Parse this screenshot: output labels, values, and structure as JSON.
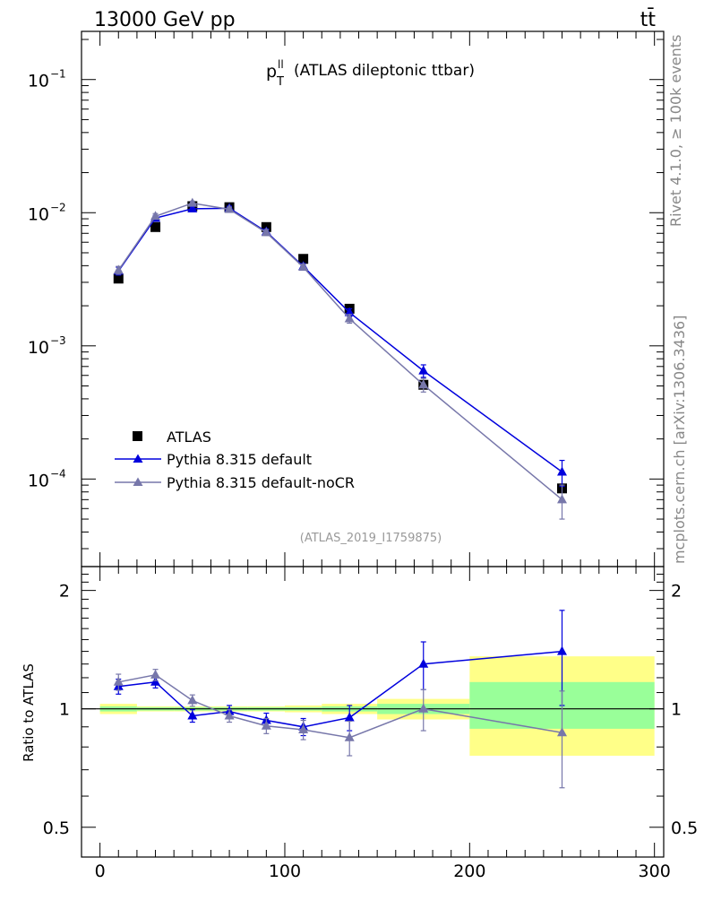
{
  "header": {
    "energy_label": "13000 GeV pp",
    "process_label": "tt̄"
  },
  "plot_title": {
    "var_main": "p",
    "var_sup": "ll",
    "var_sub": "T",
    "desc": "(ATLAS dileptonic ttbar)"
  },
  "analysis_id": "(ATLAS_2019_I1759875)",
  "side_labels": {
    "rivet": "Rivet 4.1.0, ≥ 100k events",
    "mcplots": "mcplots.cern.ch [arXiv:1306.3436]"
  },
  "legend": [
    {
      "name": "ATLAS"
    },
    {
      "name": "Pythia 8.315 default"
    },
    {
      "name": "Pythia 8.315 default-noCR"
    }
  ],
  "colors": {
    "data": "#000000",
    "default": "#0000dd",
    "nocr": "#7777aa",
    "band_inner": "#99ff99",
    "band_outer": "#ffff88"
  },
  "chart_data": [
    {
      "type": "scatter",
      "panel": "main",
      "xscale": "linear",
      "yscale": "log",
      "xlim": [
        -10,
        305
      ],
      "ylim": [
        2.2e-05,
        0.23
      ],
      "y_ticks": [
        {
          "value": 0.1,
          "label": "10",
          "exp": "−1"
        },
        {
          "value": 0.01,
          "label": "10",
          "exp": "−2"
        },
        {
          "value": 0.001,
          "label": "10",
          "exp": "−3"
        },
        {
          "value": 0.0001,
          "label": "10",
          "exp": "−4"
        }
      ],
      "bins": [
        [
          0,
          20
        ],
        [
          20,
          40
        ],
        [
          40,
          60
        ],
        [
          60,
          80
        ],
        [
          80,
          100
        ],
        [
          100,
          120
        ],
        [
          120,
          150
        ],
        [
          150,
          200
        ],
        [
          200,
          300
        ]
      ],
      "series": [
        {
          "name": "ATLAS",
          "style": "data",
          "x": [
            10,
            30,
            50,
            70,
            90,
            110,
            135,
            175,
            250
          ],
          "y": [
            0.0032,
            0.0078,
            0.0112,
            0.011,
            0.0078,
            0.0045,
            0.0019,
            0.00051,
            8.5e-05
          ]
        },
        {
          "name": "Pythia 8.315 default",
          "style": "default",
          "x": [
            10,
            30,
            50,
            70,
            90,
            110,
            135,
            175,
            250
          ],
          "y": [
            0.00365,
            0.0091,
            0.0107,
            0.0108,
            0.0072,
            0.00395,
            0.00178,
            0.00065,
            0.000113
          ],
          "err": [
            0.00025,
            0.00045,
            0.0004,
            0.0004,
            0.00035,
            0.0002,
            0.00012,
            7e-05,
            2.5e-05
          ]
        },
        {
          "name": "Pythia 8.315 default-noCR",
          "style": "nocr",
          "x": [
            10,
            30,
            50,
            70,
            90,
            110,
            135,
            175,
            250
          ],
          "y": [
            0.0037,
            0.0094,
            0.0118,
            0.0106,
            0.0071,
            0.0039,
            0.0016,
            0.00051,
            7e-05
          ],
          "err": [
            0.00025,
            0.00045,
            0.0004,
            0.0004,
            0.00035,
            0.0002,
            0.00012,
            6e-05,
            2e-05
          ]
        }
      ]
    },
    {
      "type": "line",
      "panel": "ratio",
      "ylabel": "Ratio to ATLAS",
      "xlim": [
        -10,
        305
      ],
      "ylim": [
        0.42,
        2.3
      ],
      "y_ticks": [
        {
          "value": 2,
          "label": "2"
        },
        {
          "value": 1,
          "label": "1"
        },
        {
          "value": 0.5,
          "label": "0.5"
        }
      ],
      "x_ticks": [
        {
          "value": 0,
          "label": "0"
        },
        {
          "value": 100,
          "label": "100"
        },
        {
          "value": 200,
          "label": "200"
        },
        {
          "value": 300,
          "label": "300"
        }
      ],
      "bands": [
        {
          "x0": 0,
          "x1": 20,
          "inner": [
            0.985,
            1.015
          ],
          "outer": [
            0.97,
            1.03
          ]
        },
        {
          "x0": 20,
          "x1": 40,
          "inner": [
            0.99,
            1.01
          ],
          "outer": [
            0.985,
            1.015
          ]
        },
        {
          "x0": 40,
          "x1": 60,
          "inner": [
            0.99,
            1.01
          ],
          "outer": [
            0.985,
            1.015
          ]
        },
        {
          "x0": 60,
          "x1": 80,
          "inner": [
            0.99,
            1.01
          ],
          "outer": [
            0.985,
            1.015
          ]
        },
        {
          "x0": 80,
          "x1": 100,
          "inner": [
            0.99,
            1.01
          ],
          "outer": [
            0.985,
            1.015
          ]
        },
        {
          "x0": 100,
          "x1": 120,
          "inner": [
            0.99,
            1.01
          ],
          "outer": [
            0.98,
            1.02
          ]
        },
        {
          "x0": 120,
          "x1": 150,
          "inner": [
            0.985,
            1.015
          ],
          "outer": [
            0.97,
            1.03
          ]
        },
        {
          "x0": 150,
          "x1": 200,
          "inner": [
            0.97,
            1.03
          ],
          "outer": [
            0.94,
            1.06
          ]
        },
        {
          "x0": 200,
          "x1": 300,
          "inner": [
            0.89,
            1.17
          ],
          "outer": [
            0.76,
            1.36
          ]
        }
      ],
      "series": [
        {
          "name": "Pythia 8.315 default",
          "style": "default",
          "x": [
            10,
            30,
            50,
            70,
            90,
            110,
            135,
            175,
            250
          ],
          "y": [
            1.14,
            1.17,
            0.96,
            0.985,
            0.935,
            0.9,
            0.95,
            1.3,
            1.4
          ],
          "err": [
            0.05,
            0.04,
            0.035,
            0.035,
            0.04,
            0.045,
            0.07,
            0.18,
            0.38
          ]
        },
        {
          "name": "Pythia 8.315 default-noCR",
          "style": "nocr",
          "x": [
            10,
            30,
            50,
            70,
            90,
            110,
            135,
            175,
            250
          ],
          "y": [
            1.17,
            1.22,
            1.05,
            0.96,
            0.905,
            0.885,
            0.845,
            1.0,
            0.87
          ],
          "err": [
            0.055,
            0.04,
            0.035,
            0.035,
            0.04,
            0.05,
            0.085,
            0.12,
            0.24
          ]
        }
      ]
    }
  ]
}
